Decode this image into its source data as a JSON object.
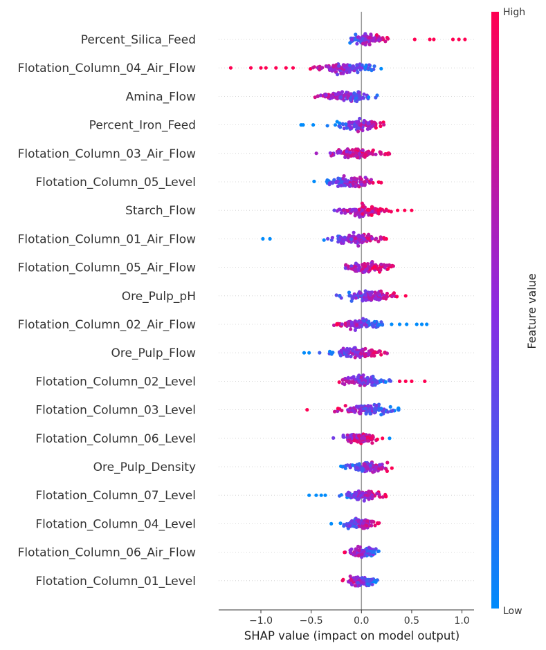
{
  "chart_data": {
    "type": "scatter",
    "subtype": "shap-beeswarm",
    "title": "",
    "xlabel": "SHAP value (impact on model output)",
    "ylabel": "",
    "xlim": [
      -1.42,
      1.12
    ],
    "x_ticks": [
      -1.0,
      -0.5,
      0.0,
      0.5,
      1.0
    ],
    "x_tick_labels": [
      "−1.0",
      "−0.5",
      "0.0",
      "0.5",
      "1.0"
    ],
    "grid": false,
    "colorbar": {
      "title": "Feature value",
      "high_label": "High",
      "low_label": "Low",
      "high_color": "#ff0052",
      "mid_color": "#8a2be2",
      "low_color": "#008bfb"
    },
    "features": [
      {
        "name": "Percent_Silica_Feed",
        "min": -0.4,
        "max": 1.05,
        "core_lo": -0.22,
        "core_hi": 0.27,
        "lo_color": "blue",
        "outliers": [
          [
            0.53,
            1
          ],
          [
            0.68,
            1
          ],
          [
            0.72,
            1
          ],
          [
            0.91,
            1
          ],
          [
            0.97,
            1
          ],
          [
            1.03,
            1
          ]
        ]
      },
      {
        "name": "Flotation_Column_04_Air_Flow",
        "min": -1.3,
        "max": 0.25,
        "core_lo": -0.55,
        "core_hi": 0.2,
        "lo_color": "red",
        "outliers": [
          [
            -1.3,
            1
          ],
          [
            -1.1,
            1
          ],
          [
            -1.0,
            1
          ],
          [
            -0.95,
            1
          ],
          [
            -0.85,
            1
          ],
          [
            -0.75,
            1
          ],
          [
            -0.68,
            1
          ]
        ]
      },
      {
        "name": "Amina_Flow",
        "min": -0.68,
        "max": 0.22,
        "core_lo": -0.55,
        "core_hi": 0.2,
        "lo_color": "red",
        "outliers": []
      },
      {
        "name": "Percent_Iron_Feed",
        "min": -0.62,
        "max": 0.27,
        "core_lo": -0.35,
        "core_hi": 0.25,
        "lo_color": "blue",
        "outliers": [
          [
            -0.6,
            0
          ],
          [
            -0.58,
            0
          ],
          [
            -0.48,
            0
          ]
        ]
      },
      {
        "name": "Flotation_Column_03_Air_Flow",
        "min": -0.52,
        "max": 0.28,
        "core_lo": -0.45,
        "core_hi": 0.28,
        "lo_color": "purple",
        "outliers": []
      },
      {
        "name": "Flotation_Column_05_Level",
        "min": -0.5,
        "max": 0.2,
        "core_lo": -0.48,
        "core_hi": 0.2,
        "lo_color": "blue",
        "outliers": []
      },
      {
        "name": "Starch_Flow",
        "min": -0.38,
        "max": 0.52,
        "core_lo": -0.3,
        "core_hi": 0.3,
        "lo_color": "purple",
        "outliers": [
          [
            0.36,
            1
          ],
          [
            0.43,
            1
          ],
          [
            0.5,
            1
          ]
        ]
      },
      {
        "name": "Flotation_Column_01_Air_Flow",
        "min": -1.0,
        "max": 0.3,
        "core_lo": -0.45,
        "core_hi": 0.25,
        "lo_color": "blue",
        "outliers": [
          [
            -0.98,
            0
          ],
          [
            -0.91,
            0
          ]
        ]
      },
      {
        "name": "Flotation_Column_05_Air_Flow",
        "min": -0.25,
        "max": 0.36,
        "core_lo": -0.25,
        "core_hi": 0.35,
        "lo_color": "purple",
        "outliers": []
      },
      {
        "name": "Ore_Pulp_pH",
        "min": -0.32,
        "max": 0.45,
        "core_lo": -0.32,
        "core_hi": 0.4,
        "lo_color": "blue",
        "outliers": [
          [
            0.44,
            1
          ]
        ]
      },
      {
        "name": "Flotation_Column_02_Air_Flow",
        "min": -0.32,
        "max": 0.65,
        "core_lo": -0.32,
        "core_hi": 0.25,
        "lo_color": "red",
        "outliers": [
          [
            0.3,
            0
          ],
          [
            0.38,
            0
          ],
          [
            0.45,
            0
          ],
          [
            0.55,
            0
          ],
          [
            0.6,
            0
          ],
          [
            0.65,
            0
          ]
        ]
      },
      {
        "name": "Ore_Pulp_Flow",
        "min": -0.57,
        "max": 0.27,
        "core_lo": -0.45,
        "core_hi": 0.27,
        "lo_color": "blue",
        "outliers": [
          [
            -0.57,
            0
          ],
          [
            -0.52,
            0
          ]
        ]
      },
      {
        "name": "Flotation_Column_02_Level",
        "min": -0.3,
        "max": 0.63,
        "core_lo": -0.3,
        "core_hi": 0.3,
        "lo_color": "red",
        "outliers": [
          [
            0.38,
            1
          ],
          [
            0.44,
            1
          ],
          [
            0.5,
            1
          ],
          [
            0.63,
            1
          ]
        ]
      },
      {
        "name": "Flotation_Column_03_Level",
        "min": -0.55,
        "max": 0.38,
        "core_lo": -0.35,
        "core_hi": 0.38,
        "lo_color": "red",
        "outliers": [
          [
            -0.54,
            1
          ]
        ]
      },
      {
        "name": "Flotation_Column_06_Level",
        "min": -0.32,
        "max": 0.28,
        "core_lo": -0.3,
        "core_hi": 0.22,
        "lo_color": "purple",
        "outliers": [
          [
            0.28,
            0
          ]
        ]
      },
      {
        "name": "Ore_Pulp_Density",
        "min": -0.25,
        "max": 0.38,
        "core_lo": -0.25,
        "core_hi": 0.38,
        "lo_color": "blue",
        "outliers": []
      },
      {
        "name": "Flotation_Column_07_Level",
        "min": -0.52,
        "max": 0.25,
        "core_lo": -0.25,
        "core_hi": 0.25,
        "lo_color": "blue",
        "outliers": [
          [
            -0.52,
            0
          ],
          [
            -0.45,
            0
          ],
          [
            -0.4,
            0
          ],
          [
            -0.36,
            0
          ]
        ]
      },
      {
        "name": "Flotation_Column_04_Level",
        "min": -0.3,
        "max": 0.18,
        "core_lo": -0.25,
        "core_hi": 0.18,
        "lo_color": "blue",
        "outliers": [
          [
            -0.3,
            0
          ]
        ]
      },
      {
        "name": "Flotation_Column_06_Air_Flow",
        "min": -0.2,
        "max": 0.2,
        "core_lo": -0.2,
        "core_hi": 0.2,
        "lo_color": "red",
        "outliers": []
      },
      {
        "name": "Flotation_Column_01_Level",
        "min": -0.22,
        "max": 0.18,
        "core_lo": -0.22,
        "core_hi": 0.18,
        "lo_color": "red",
        "outliers": []
      }
    ]
  }
}
